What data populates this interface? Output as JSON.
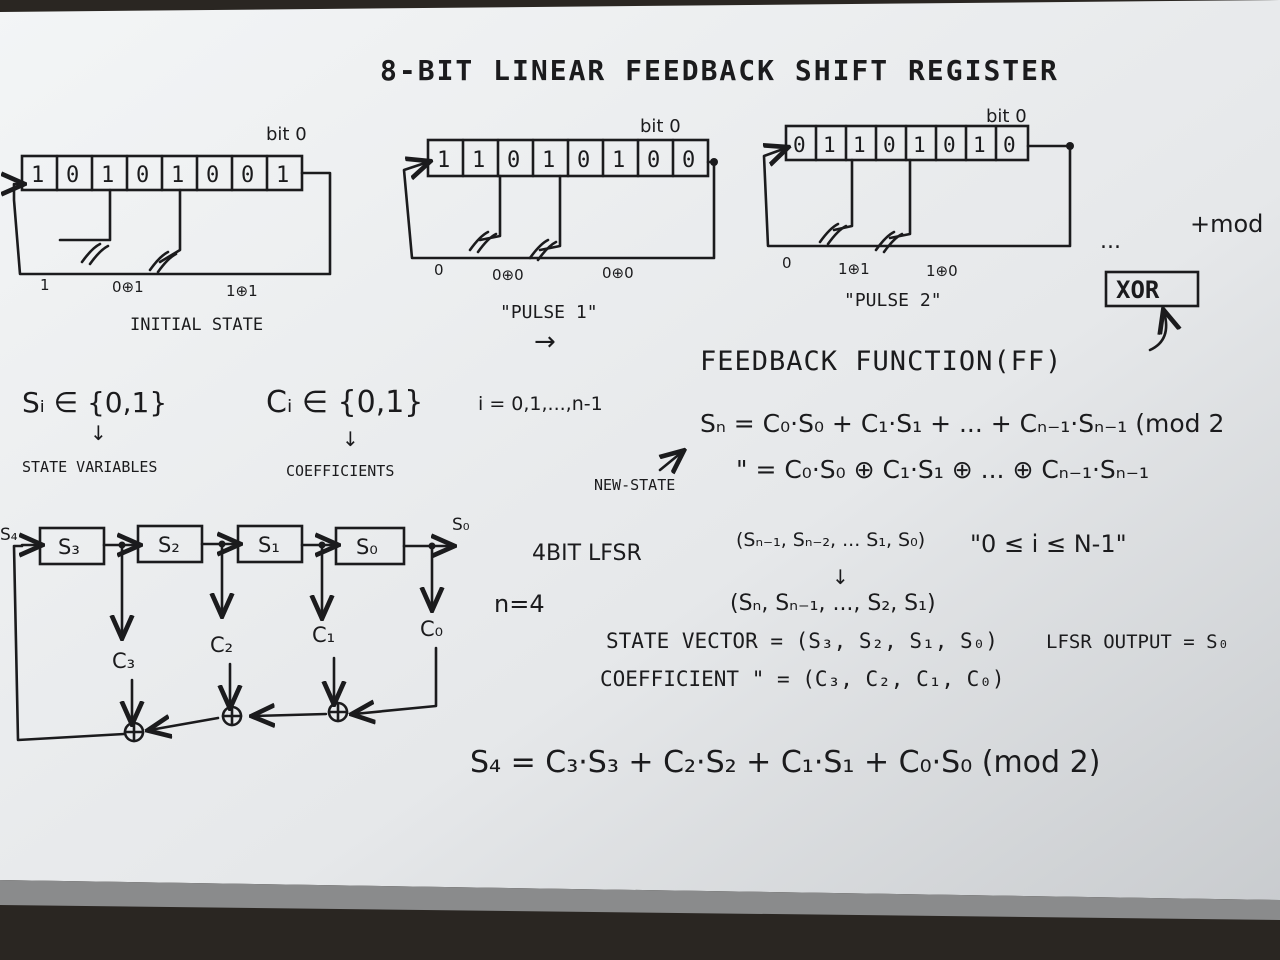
{
  "title": "8-BIT LINEAR FEEDBACK SHIFT REGISTER",
  "bit_label": "bit 0",
  "registers": [
    {
      "bits": [
        "1",
        "0",
        "1",
        "0",
        "1",
        "0",
        "0",
        "1"
      ],
      "tap_left": "1",
      "tap_mid": "0⊕1",
      "tap_right": "1⊕1",
      "caption": "INITIAL STATE"
    },
    {
      "bits": [
        "1",
        "1",
        "0",
        "1",
        "0",
        "1",
        "0",
        "0"
      ],
      "tap_left": "0",
      "tap_mid": "0⊕0",
      "tap_right": "0⊕0",
      "caption": "\"PULSE 1\""
    },
    {
      "bits": [
        "0",
        "1",
        "1",
        "0",
        "1",
        "0",
        "1",
        "0"
      ],
      "tap_left": "0",
      "tap_mid": "1⊕1",
      "tap_right": "1⊕0",
      "caption": "\"PULSE 2\""
    }
  ],
  "arrow_right": "→",
  "ellipsis": "...",
  "tmod": "+mod",
  "xor_box": "XOR",
  "feedback_title": "FEEDBACK FUNCTION(FF)",
  "defs": {
    "si": "Sᵢ ∈ {0,1}",
    "si_label": "STATE VARIABLES",
    "ci": "Cᵢ ∈ {0,1}",
    "ci_label": "COEFFICIENTS",
    "range": "i = 0,1,...,n-1"
  },
  "equations": {
    "sn1": "Sₙ = C₀·S₀ + C₁·S₁ + ... + Cₙ₋₁·Sₙ₋₁ (mod 2",
    "sn2": "\" = C₀·S₀ ⊕ C₁·S₁ ⊕ ... ⊕ Cₙ₋₁·Sₙ₋₁",
    "new_state": "NEW-STATE",
    "vec1": "(Sₙ₋₁, Sₙ₋₂, ... S₁, S₀)",
    "vec2": "(Sₙ, Sₙ₋₁, ..., S₂, S₁)",
    "range2": "\"0 ≤ i ≤ N-1\"",
    "lfsr_out": "LFSR OUTPUT = S₀",
    "state_vector": "STATE VECTOR = (S₃, S₂, S₁, S₀)",
    "coeff_vector": "COEFFICIENT \" = (C₃, C₂, C₁, C₀)",
    "s4": "S₄ = C₃·S₃ + C₂·S₂ + C₁·S₁ + C₀·S₀ (mod 2)"
  },
  "lfsr4": {
    "label": "4BIT LFSR",
    "n_eq": "n=4",
    "in_label": "S₄",
    "out_label": "S₀",
    "cells": [
      "S₃",
      "S₂",
      "S₁",
      "S₀"
    ],
    "coeffs": [
      "C₃",
      "C₂",
      "C₁",
      "C₀"
    ]
  },
  "colors": {
    "board": "#e9ebec",
    "ink": "#1b1b1d",
    "frame": "#2a2622"
  }
}
